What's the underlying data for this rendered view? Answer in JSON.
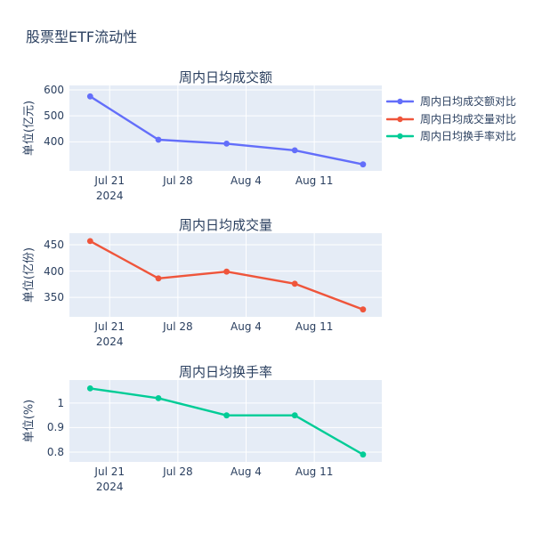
{
  "figure": {
    "title": "股票型ETF流动性"
  },
  "colors": {
    "text": "#2a3f5f",
    "plot_background": "#e5ecf6",
    "gridline": "#ffffff",
    "paper_background": "#ffffff",
    "series_blue": "#636efa",
    "series_red": "#ef553b",
    "series_green": "#00cc96"
  },
  "legend": {
    "position": "top-right",
    "items": [
      {
        "label": "周内日均成交额对比",
        "color": "#636efa"
      },
      {
        "label": "周内日均成交量对比",
        "color": "#ef553b"
      },
      {
        "label": "周内日均换手率对比",
        "color": "#00cc96"
      }
    ]
  },
  "chart_data": [
    {
      "type": "line",
      "title": "周内日均成交额",
      "series_name": "周内日均成交额对比",
      "color": "#636efa",
      "xlabel": "",
      "ylabel": "单位(亿元)",
      "x_dates": [
        "2024-07-19",
        "2024-07-26",
        "2024-08-02",
        "2024-08-09",
        "2024-08-16"
      ],
      "x_days": [
        0,
        7,
        14,
        21,
        28
      ],
      "values": [
        575,
        408,
        393,
        367,
        313
      ],
      "yticks": [
        {
          "value": 400,
          "label": "400"
        },
        {
          "value": 500,
          "label": "500"
        },
        {
          "value": 600,
          "label": "600"
        }
      ],
      "xticks": [
        {
          "day": 2,
          "label": "Jul 21",
          "sublabel": "2024"
        },
        {
          "day": 9,
          "label": "Jul 28"
        },
        {
          "day": 16,
          "label": "Aug 4"
        },
        {
          "day": 23,
          "label": "Aug 11"
        }
      ],
      "ylim": [
        288,
        617
      ],
      "xlim_days": [
        -2.13,
        29.93
      ],
      "grid": true
    },
    {
      "type": "line",
      "title": "周内日均成交量",
      "series_name": "周内日均成交量对比",
      "color": "#ef553b",
      "xlabel": "",
      "ylabel": "单位(亿份)",
      "x_dates": [
        "2024-07-19",
        "2024-07-26",
        "2024-08-02",
        "2024-08-09",
        "2024-08-16"
      ],
      "x_days": [
        0,
        7,
        14,
        21,
        28
      ],
      "values": [
        457,
        386,
        399,
        376,
        327
      ],
      "yticks": [
        {
          "value": 350,
          "label": "350"
        },
        {
          "value": 400,
          "label": "400"
        },
        {
          "value": 450,
          "label": "450"
        }
      ],
      "xticks": [
        {
          "day": 2,
          "label": "Jul 21",
          "sublabel": "2024"
        },
        {
          "day": 9,
          "label": "Jul 28"
        },
        {
          "day": 16,
          "label": "Aug 4"
        },
        {
          "day": 23,
          "label": "Aug 11"
        }
      ],
      "ylim": [
        313,
        472
      ],
      "xlim_days": [
        -2.13,
        29.93
      ],
      "grid": true
    },
    {
      "type": "line",
      "title": "周内日均换手率",
      "series_name": "周内日均换手率对比",
      "color": "#00cc96",
      "xlabel": "",
      "ylabel": "单位(%)",
      "x_dates": [
        "2024-07-19",
        "2024-07-26",
        "2024-08-02",
        "2024-08-09",
        "2024-08-16"
      ],
      "x_days": [
        0,
        7,
        14,
        21,
        28
      ],
      "values": [
        1.06,
        1.02,
        0.95,
        0.95,
        0.79
      ],
      "yticks": [
        {
          "value": 0.8,
          "label": "0.8"
        },
        {
          "value": 0.9,
          "label": "0.9"
        },
        {
          "value": 1.0,
          "label": "1"
        }
      ],
      "xticks": [
        {
          "day": 2,
          "label": "Jul 21",
          "sublabel": "2024"
        },
        {
          "day": 9,
          "label": "Jul 28"
        },
        {
          "day": 16,
          "label": "Aug 4"
        },
        {
          "day": 23,
          "label": "Aug 11"
        }
      ],
      "ylim": [
        0.76,
        1.094
      ],
      "xlim_days": [
        -2.13,
        29.93
      ],
      "grid": true
    }
  ]
}
